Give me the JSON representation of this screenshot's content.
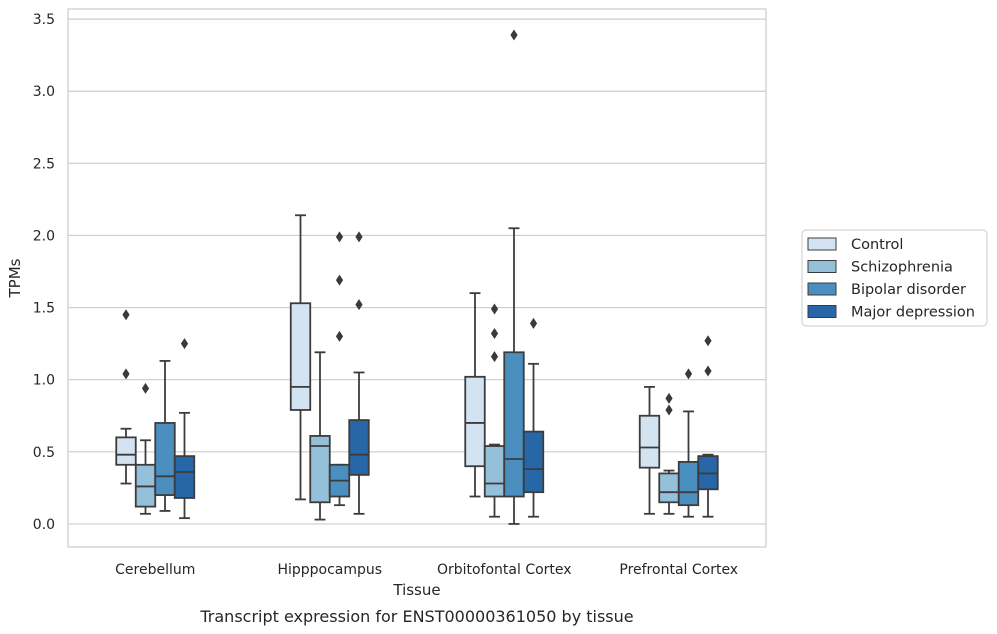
{
  "chart_data": {
    "type": "box",
    "title": "",
    "caption": "Transcript expression for ENST00000361050 by tissue",
    "xlabel": "Tissue",
    "ylabel": "TPMs",
    "ylim": [
      -0.16,
      3.57
    ],
    "yticks": [
      "0.0",
      "0.5",
      "1.0",
      "1.5",
      "2.0",
      "2.5",
      "3.0",
      "3.5"
    ],
    "ytick_values": [
      0,
      0.5,
      1.0,
      1.5,
      2.0,
      2.5,
      3.0,
      3.5
    ],
    "grid": "horizontal",
    "legend_position": "right",
    "categories": [
      "Cerebellum",
      "Hipppocampus",
      "Orbitofontal Cortex",
      "Prefrontal Cortex"
    ],
    "series": [
      {
        "name": "Control",
        "color": "#d3e3f2",
        "boxes": [
          {
            "whisker_low": 0.28,
            "q1": 0.41,
            "median": 0.48,
            "q3": 0.6,
            "whisker_high": 0.66,
            "outliers": [
              1.04,
              1.45
            ]
          },
          {
            "whisker_low": 0.17,
            "q1": 0.79,
            "median": 0.95,
            "q3": 1.53,
            "whisker_high": 2.14,
            "outliers": []
          },
          {
            "whisker_low": 0.19,
            "q1": 0.4,
            "median": 0.7,
            "q3": 1.02,
            "whisker_high": 1.6,
            "outliers": []
          },
          {
            "whisker_low": 0.07,
            "q1": 0.39,
            "median": 0.53,
            "q3": 0.75,
            "whisker_high": 0.95,
            "outliers": []
          }
        ]
      },
      {
        "name": "Schizophrenia",
        "color": "#95c0da",
        "boxes": [
          {
            "whisker_low": 0.07,
            "q1": 0.12,
            "median": 0.26,
            "q3": 0.41,
            "whisker_high": 0.58,
            "outliers": [
              0.94
            ]
          },
          {
            "whisker_low": 0.03,
            "q1": 0.15,
            "median": 0.54,
            "q3": 0.61,
            "whisker_high": 1.19,
            "outliers": []
          },
          {
            "whisker_low": 0.05,
            "q1": 0.19,
            "median": 0.28,
            "q3": 0.54,
            "whisker_high": 0.55,
            "outliers": [
              1.16,
              1.32,
              1.49
            ]
          },
          {
            "whisker_low": 0.07,
            "q1": 0.15,
            "median": 0.22,
            "q3": 0.35,
            "whisker_high": 0.37,
            "outliers": [
              0.79,
              0.87
            ]
          }
        ]
      },
      {
        "name": "Bipolar disorder",
        "color": "#4b8fc1",
        "boxes": [
          {
            "whisker_low": 0.09,
            "q1": 0.2,
            "median": 0.33,
            "q3": 0.7,
            "whisker_high": 1.13,
            "outliers": []
          },
          {
            "whisker_low": 0.13,
            "q1": 0.19,
            "median": 0.3,
            "q3": 0.41,
            "whisker_high": 0.41,
            "outliers": [
              1.3,
              1.69,
              1.99
            ]
          },
          {
            "whisker_low": 0.0,
            "q1": 0.19,
            "median": 0.45,
            "q3": 1.19,
            "whisker_high": 2.05,
            "outliers": [
              3.39
            ]
          },
          {
            "whisker_low": 0.05,
            "q1": 0.13,
            "median": 0.22,
            "q3": 0.43,
            "whisker_high": 0.78,
            "outliers": [
              1.04
            ]
          }
        ]
      },
      {
        "name": "Major depression",
        "color": "#2767a8",
        "boxes": [
          {
            "whisker_low": 0.04,
            "q1": 0.18,
            "median": 0.36,
            "q3": 0.47,
            "whisker_high": 0.77,
            "outliers": [
              1.25
            ]
          },
          {
            "whisker_low": 0.07,
            "q1": 0.34,
            "median": 0.48,
            "q3": 0.72,
            "whisker_high": 1.05,
            "outliers": [
              1.52,
              1.99
            ]
          },
          {
            "whisker_low": 0.05,
            "q1": 0.22,
            "median": 0.38,
            "q3": 0.64,
            "whisker_high": 1.11,
            "outliers": [
              1.39
            ]
          },
          {
            "whisker_low": 0.05,
            "q1": 0.24,
            "median": 0.35,
            "q3": 0.47,
            "whisker_high": 0.48,
            "outliers": [
              1.06,
              1.27
            ]
          }
        ]
      }
    ]
  }
}
